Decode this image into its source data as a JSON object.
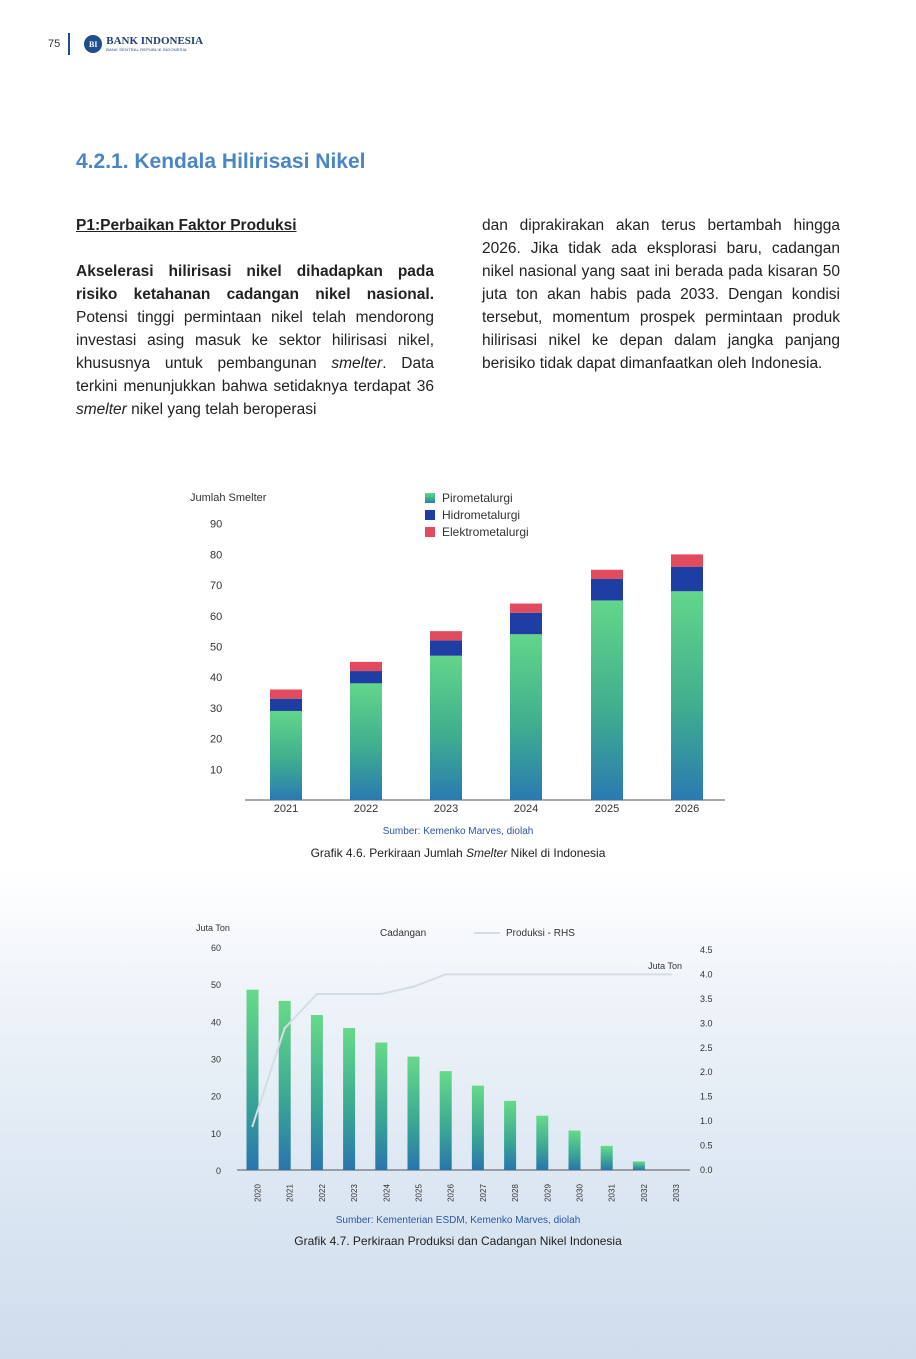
{
  "header": {
    "page_number": "75",
    "logo_seal": "BI",
    "logo_name": "BANK INDONESIA",
    "logo_tagline": "BANK SENTRAL REPUBLIK INDONESIA"
  },
  "section_title": "4.2.1.  Kendala Hilirisasi Nikel",
  "body": {
    "subheading": "P1:Perbaikan Faktor Produksi",
    "lead_bold": "Akselerasi hilirisasi nikel dihadapkan pada risiko ketahanan cadangan nikel nasional.",
    "p1_a": " Potensi tinggi permintaan nikel telah mendorong investasi asing masuk ke sektor hilirisasi nikel, khususnya untuk pembangunan ",
    "p1_i1": "smelter",
    "p1_b": ". Data terkini menunjukkan bahwa setidaknya terdapat 36 ",
    "p1_i2": "smelter",
    "p1_c": " nikel yang telah beroperasi",
    "p2": "dan diprakirakan akan terus bertambah hingga 2026. Jika tidak ada eksplorasi baru, cadangan nikel nasional yang saat ini berada pada kisaran 50 juta ton akan habis pada 2033. Dengan kondisi tersebut, momentum prospek permintaan produk hilirisasi nikel ke depan dalam jangka panjang berisiko tidak dapat dimanfaatkan oleh Indonesia."
  },
  "chart_data": [
    {
      "type": "bar",
      "stacked": true,
      "ylabel": "Jumlah Smelter",
      "ylim": [
        0,
        90
      ],
      "yticks": [
        10,
        20,
        30,
        40,
        50,
        60,
        70,
        80,
        90
      ],
      "categories": [
        "2021",
        "2022",
        "2023",
        "2024",
        "2025",
        "2026"
      ],
      "series": [
        {
          "name": "Pirometalurgi",
          "values": [
            29,
            38,
            47,
            54,
            65,
            68
          ]
        },
        {
          "name": "Hidrometalurgi",
          "values": [
            4,
            4,
            5,
            7,
            7,
            8
          ]
        },
        {
          "name": "Elektrometalurgi",
          "values": [
            3,
            3,
            3,
            3,
            3,
            4
          ]
        }
      ],
      "legend_position": "top",
      "colors": {
        "Pirometalurgi_top": "#62d68a",
        "Pirometalurgi_bottom": "#2a7ab1",
        "Hidrometalurgi": "#1f3ea3",
        "Elektrometalurgi": "#e24a5e"
      },
      "source": "Sumber: Kemenko Marves, diolah",
      "caption_a": "Grafik 4.6. Perkiraan Jumlah ",
      "caption_i": "Smelter",
      "caption_b": " Nikel di Indonesia"
    },
    {
      "type": "bar+line",
      "ylabel_left": "Juta Ton",
      "ylabel_right": "Juta Ton",
      "ylim_left": [
        0,
        60
      ],
      "yticks_left": [
        "0",
        "10",
        "20",
        "30",
        "40",
        "50",
        "60"
      ],
      "ylim_right": [
        0,
        4.5
      ],
      "yticks_right": [
        "0.0",
        "0.5",
        "1.0",
        "1.5",
        "2.0",
        "2.5",
        "3.0",
        "3.5",
        "4.0",
        "4.5"
      ],
      "categories": [
        "2020",
        "2021",
        "2022",
        "2023",
        "2024",
        "2025",
        "2026",
        "2027",
        "2028",
        "2029",
        "2030",
        "2031",
        "2032",
        "2033"
      ],
      "series": [
        {
          "name": "Cadangan",
          "type": "bar",
          "axis": "left",
          "values": [
            48.5,
            45.5,
            41.7,
            38.2,
            34.3,
            30.5,
            26.6,
            22.7,
            18.6,
            14.6,
            10.6,
            6.5,
            2.3,
            0
          ]
        },
        {
          "name": "Produksi - RHS",
          "type": "line",
          "axis": "right",
          "values": [
            0.9,
            2.9,
            3.6,
            3.6,
            3.6,
            3.75,
            4.0,
            4.0,
            4.0,
            4.0,
            4.0,
            4.0,
            4.0,
            4.0
          ]
        }
      ],
      "legend_position": "top",
      "colors": {
        "bar_top": "#62d68a",
        "bar_bottom": "#2a7ab1",
        "line": "#d4dde6"
      },
      "source": "Sumber: Kementerian ESDM, Kemenko Marves, diolah",
      "caption": "Grafik 4.7. Perkiraan Produksi dan Cadangan Nikel Indonesia"
    }
  ]
}
